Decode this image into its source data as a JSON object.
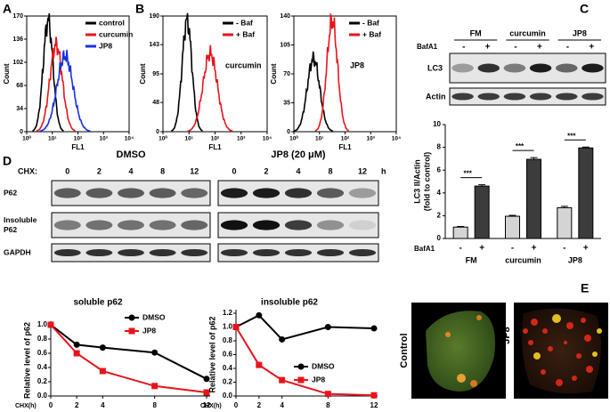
{
  "figure": {
    "panel_a": {
      "label": "A",
      "type": "histogram",
      "ylabel": "Count",
      "xlabel": "FL1",
      "log": true,
      "xlim": [
        1,
        10000
      ],
      "xticks": [
        {
          "value": 1,
          "label": "10⁰"
        },
        {
          "value": 10,
          "label": "10¹"
        },
        {
          "value": 100,
          "label": "10²"
        },
        {
          "value": 1000,
          "label": "10³"
        },
        {
          "value": 10000,
          "label": "10⁴"
        }
      ],
      "ylim": [
        0,
        170
      ],
      "yticks": [
        0,
        34,
        68,
        102,
        136,
        170
      ],
      "legend": [
        {
          "name": "control",
          "color": "#000000"
        },
        {
          "name": "curcumin",
          "color": "#e8141b"
        },
        {
          "name": "JP8",
          "color": "#1730e6"
        }
      ]
    },
    "panel_b": {
      "label": "B",
      "plots": [
        {
          "type": "histogram",
          "ylabel": "Count",
          "xlabel": "FL1",
          "annotation": "curcumin",
          "log": true,
          "xlim": [
            1,
            10000
          ],
          "xticks": [
            {
              "value": 1,
              "label": "10⁰"
            },
            {
              "value": 10,
              "label": "10¹"
            },
            {
              "value": 100,
              "label": "10²"
            },
            {
              "value": 1000,
              "label": "10³"
            },
            {
              "value": 10000,
              "label": "10⁴"
            }
          ],
          "ylim": [
            0,
            190
          ],
          "yticks": [
            0,
            48,
            95,
            143,
            190
          ],
          "legend": [
            {
              "name": "- Baf",
              "color": "#000000"
            },
            {
              "name": "+ Baf",
              "color": "#e8141b"
            }
          ]
        },
        {
          "type": "histogram",
          "ylabel": "Count",
          "xlabel": "FL1",
          "annotation": "JP8",
          "log": true,
          "xlim": [
            1,
            10000
          ],
          "xticks": [
            {
              "value": 1,
              "label": "10⁰"
            },
            {
              "value": 10,
              "label": "10¹"
            },
            {
              "value": 100,
              "label": "10²"
            },
            {
              "value": 1000,
              "label": "10³"
            },
            {
              "value": 10000,
              "label": "10⁴"
            }
          ],
          "ylim": [
            0,
            140
          ],
          "yticks": [
            0,
            35,
            70,
            105,
            140
          ],
          "legend": [
            {
              "name": "- Baf",
              "color": "#000000"
            },
            {
              "name": "+ Baf",
              "color": "#e8141b"
            }
          ]
        }
      ]
    },
    "panel_c": {
      "label": "C",
      "groups": [
        "FM",
        "curcumin",
        "JP8"
      ],
      "treatment": "BafA1",
      "signs": [
        "-",
        "+"
      ],
      "blots": [
        "LC3",
        "Actin"
      ],
      "chart": {
        "type": "bar",
        "ylabel_lines": [
          "LC3 II/Actin",
          "(fold to control)"
        ],
        "categories": [
          "FM",
          "curcumin",
          "JP8"
        ],
        "row_label": "BafA1",
        "series": [
          {
            "name": "-",
            "color": "#d4d4d4",
            "values": [
              1.0,
              1.95,
              2.7
            ],
            "errors": [
              0.05,
              0.08,
              0.12
            ]
          },
          {
            "name": "+",
            "color": "#3c3c3c",
            "values": [
              4.6,
              6.95,
              7.95
            ],
            "errors": [
              0.12,
              0.15,
              0.08
            ]
          }
        ],
        "ylim": [
          0,
          10
        ],
        "yticks": [
          0,
          2,
          4,
          6,
          8,
          10
        ],
        "significance": [
          "***",
          "***",
          "***"
        ]
      }
    },
    "panel_d": {
      "label": "D",
      "conditions": [
        "DMSO",
        "JP8 (20 μM)"
      ],
      "time_label": "CHX:",
      "times": [
        0,
        2,
        4,
        8,
        12
      ],
      "time_unit": "h",
      "blots": [
        [
          "P62"
        ],
        [
          "Insoluble",
          "P62"
        ],
        [
          "GAPDH"
        ]
      ],
      "charts": [
        {
          "type": "line",
          "title": "soluble p62",
          "ylabel": "Relative level of p62",
          "xlabel": "CHX(h)",
          "x": [
            0,
            2,
            4,
            8,
            12
          ],
          "xlim": [
            0,
            12
          ],
          "xticks": [
            0,
            2,
            4,
            8,
            12
          ],
          "ylim": [
            0,
            1
          ],
          "yticks": [
            {
              "value": 0,
              "label": "0.0"
            },
            {
              "value": 0.2,
              "label": "0.2"
            },
            {
              "value": 0.4,
              "label": "0.4"
            },
            {
              "value": 0.6,
              "label": "0.6"
            },
            {
              "value": 0.8,
              "label": "0.8"
            },
            {
              "value": 1,
              "label": "1.0"
            }
          ],
          "series": [
            {
              "name": "DMSO",
              "color": "#000000",
              "marker": "circle",
              "values": [
                1.0,
                0.72,
                0.68,
                0.61,
                0.24
              ]
            },
            {
              "name": "JP8",
              "color": "#e8141b",
              "marker": "square",
              "values": [
                1.0,
                0.6,
                0.35,
                0.14,
                0.05
              ]
            }
          ]
        },
        {
          "type": "line",
          "title": "insoluble p62",
          "ylabel": "Relative level of p62",
          "xlabel": "CHX(h)",
          "x": [
            0,
            2,
            4,
            8,
            12
          ],
          "xlim": [
            0,
            12
          ],
          "xticks": [
            0,
            2,
            4,
            8,
            12
          ],
          "ylim": [
            0,
            1.2
          ],
          "yticks": [
            {
              "value": 0,
              "label": "0.0"
            },
            {
              "value": 0.2,
              "label": "0.2"
            },
            {
              "value": 0.4,
              "label": "0.4"
            },
            {
              "value": 0.6,
              "label": "0.6"
            },
            {
              "value": 0.8,
              "label": "0.8"
            },
            {
              "value": 1,
              "label": "1.0"
            },
            {
              "value": 1.2,
              "label": "1.2"
            }
          ],
          "series": [
            {
              "name": "DMSO",
              "color": "#000000",
              "marker": "circle",
              "values": [
                1.0,
                1.17,
                0.82,
                1.0,
                0.98
              ]
            },
            {
              "name": "JP8",
              "color": "#e8141b",
              "marker": "square",
              "values": [
                1.0,
                0.45,
                0.23,
                0.03,
                0.01
              ]
            }
          ]
        }
      ]
    },
    "panel_e": {
      "label": "E",
      "images": [
        "Control",
        "JP8"
      ]
    }
  }
}
